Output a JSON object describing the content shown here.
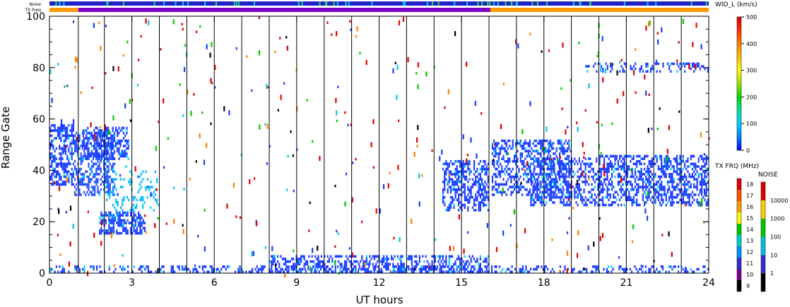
{
  "chart_data": {
    "type": "scatter",
    "xlabel": "UT hours",
    "ylabel": "Range Gate",
    "xlim": [
      0,
      24
    ],
    "ylim": [
      0,
      100
    ],
    "xticks": [
      "0",
      "3",
      "6",
      "9",
      "12",
      "15",
      "18",
      "21",
      "24"
    ],
    "yticks": [
      "0",
      "20",
      "40",
      "60",
      "80",
      "100"
    ],
    "scan_boundaries_ut": [
      1.05,
      2.0,
      3.0,
      4.0,
      5.0,
      6.0,
      7.0,
      8.0,
      9.0,
      10.0,
      11.0,
      12.0,
      13.0,
      14.0,
      15.0,
      16.0,
      17.0,
      18.0,
      19.0,
      20.0,
      21.0,
      22.0,
      23.0
    ],
    "top_strips": {
      "noise_label": "Noise",
      "txfreq_label": "TX Freq",
      "noise_color": "#2020c8",
      "txfreq_segments": [
        {
          "from": 0.0,
          "to": 1.05,
          "color": "#ff9900"
        },
        {
          "from": 1.05,
          "to": 16.05,
          "color": "#7a00c8"
        },
        {
          "from": 16.05,
          "to": 24.0,
          "color": "#ff9900"
        }
      ]
    },
    "colorbars": {
      "width": {
        "title": "WID_L (km/s)",
        "ticks": [
          "0",
          "100",
          "200",
          "300",
          "400",
          "500"
        ],
        "stops": [
          "#0000ff",
          "#0080ff",
          "#00d0ff",
          "#00e0a0",
          "#00dd00",
          "#a0e000",
          "#ffff00",
          "#ffc000",
          "#ff8000",
          "#ff3000",
          "#dd0000"
        ]
      },
      "tx_freq": {
        "title": "TX FRQ (MHz)",
        "ticks": [
          "9",
          "10",
          "11",
          "12",
          "13",
          "14",
          "15",
          "16",
          "17",
          "18"
        ],
        "colors": [
          "#000000",
          "#7a0090",
          "#3030d0",
          "#0090ff",
          "#00d0d0",
          "#00c800",
          "#ffff00",
          "#ffa000",
          "#ff5000",
          "#e00000"
        ]
      },
      "noise": {
        "title": "NOISE",
        "ticks": [
          "1",
          "10",
          "100",
          "1000",
          "10000"
        ],
        "colors": [
          "#000000",
          "#3030d0",
          "#00c0e0",
          "#00c800",
          "#ffd000",
          "#e00000"
        ]
      }
    },
    "echo_regions": [
      {
        "ut": [
          0.0,
          0.9
        ],
        "gates": [
          34,
          58
        ],
        "color": "#1a3cff",
        "density": 0.55
      },
      {
        "ut": [
          0.9,
          2.4
        ],
        "gates": [
          30,
          55
        ],
        "color": "#2850ff",
        "density": 0.45
      },
      {
        "ut": [
          1.2,
          2.9
        ],
        "gates": [
          44,
          57
        ],
        "color": "#1a3cff",
        "density": 0.5
      },
      {
        "ut": [
          1.8,
          3.5
        ],
        "gates": [
          15,
          24
        ],
        "color": "#1a3cff",
        "density": 0.65
      },
      {
        "ut": [
          2.0,
          4.0
        ],
        "gates": [
          24,
          40
        ],
        "color": "#00b8ff",
        "density": 0.18
      },
      {
        "ut": [
          14.3,
          16.0
        ],
        "gates": [
          24,
          44
        ],
        "color": "#1a3cff",
        "density": 0.5
      },
      {
        "ut": [
          16.1,
          19.0
        ],
        "gates": [
          30,
          52
        ],
        "color": "#1a3cff",
        "density": 0.45
      },
      {
        "ut": [
          17.5,
          20.0
        ],
        "gates": [
          26,
          45
        ],
        "color": "#2040ff",
        "density": 0.4
      },
      {
        "ut": [
          20.0,
          24.0
        ],
        "gates": [
          26,
          46
        ],
        "color": "#1a3cff",
        "density": 0.5
      },
      {
        "ut": [
          19.5,
          24.0
        ],
        "gates": [
          78,
          82
        ],
        "color": "#1a3cff",
        "density": 0.3
      },
      {
        "ut": [
          0.0,
          24.0
        ],
        "gates": [
          0,
          3
        ],
        "color": "#1a3cff",
        "density": 0.3
      },
      {
        "ut": [
          8.0,
          16.0
        ],
        "gates": [
          0,
          7
        ],
        "color": "#1a3cff",
        "density": 0.45
      }
    ],
    "scatter_noise": {
      "color_main": "#e00000",
      "count": 420
    }
  }
}
